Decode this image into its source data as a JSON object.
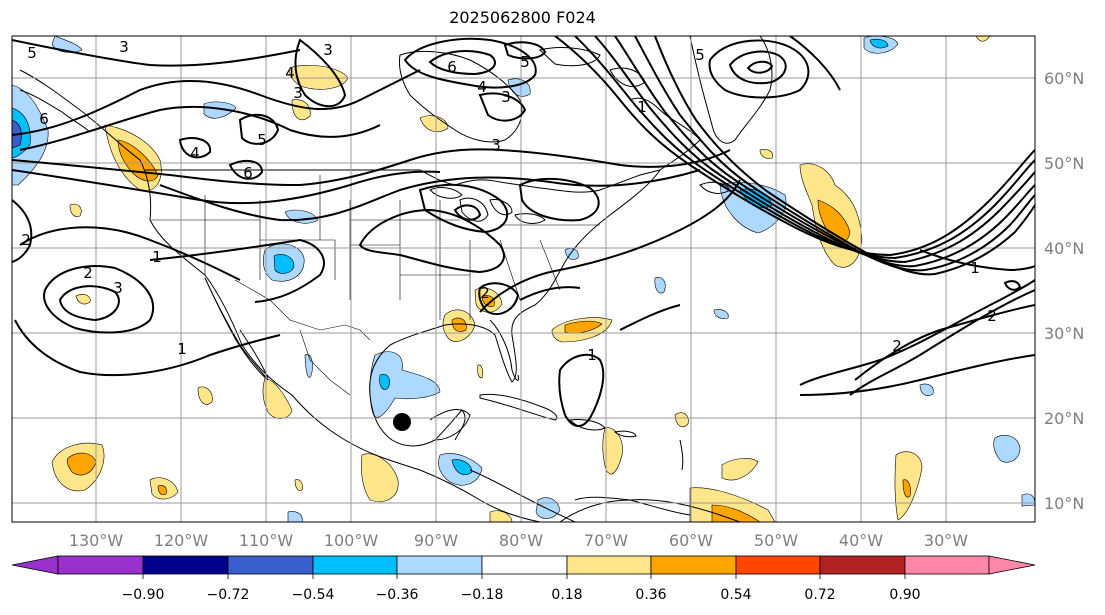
{
  "title": "2025062800 F024",
  "longitude_labels": [
    "130°W",
    "120°W",
    "110°W",
    "100°W",
    "90°W",
    "80°W",
    "70°W",
    "60°W",
    "50°W",
    "40°W",
    "30°W"
  ],
  "latitude_labels": [
    "60°N",
    "50°N",
    "40°N",
    "30°N",
    "20°N",
    "10°N"
  ],
  "colorbar": {
    "ticks": [
      "−0.90",
      "−0.72",
      "−0.54",
      "−0.36",
      "−0.18",
      "0.18",
      "0.36",
      "0.54",
      "0.72",
      "0.90"
    ],
    "colors": [
      "#9932cc",
      "#00008b",
      "#3a5fcd",
      "#00bfff",
      "#add8ff",
      "#ffffff",
      "#ffe68a",
      "#ffa500",
      "#ff4500",
      "#b22222",
      "#ff88aa"
    ]
  },
  "contour_labels": [
    "5",
    "3",
    "3",
    "6",
    "4",
    "3",
    "5",
    "1",
    "2",
    "3",
    "6",
    "6",
    "5",
    "4",
    "4",
    "5",
    "3",
    "3",
    "1",
    "2",
    "1",
    "2",
    "2",
    "1",
    "2",
    "1"
  ],
  "marker": "storm-center-dot",
  "colors": {
    "land_lines": "#000000",
    "grid": "#9a9a9a",
    "contour": "#000000"
  }
}
